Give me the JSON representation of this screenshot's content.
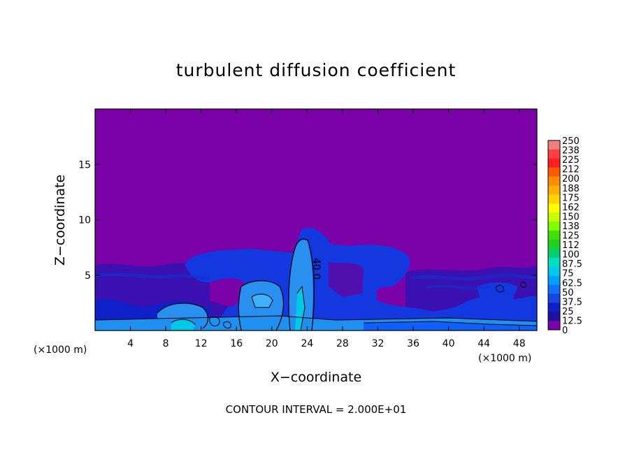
{
  "chart_data": {
    "type": "heatmap",
    "title": "turbulent diffusion coefficient",
    "xlabel": "X−coordinate",
    "ylabel": "Z−coordinate",
    "x_unit_left": "(×1000 m)",
    "x_unit_right": "(×1000 m)",
    "xlim": [
      0,
      50
    ],
    "ylim": [
      0,
      20
    ],
    "x_ticks": [
      4,
      8,
      12,
      16,
      20,
      24,
      28,
      32,
      36,
      40,
      44,
      48
    ],
    "y_ticks": [
      5,
      10,
      15
    ],
    "colorbar": {
      "labels": [
        "250",
        "238",
        "225",
        "212",
        "200",
        "188",
        "175",
        "162",
        "150",
        "138",
        "125",
        "112",
        "100",
        "87.5",
        "75",
        "62.5",
        "50",
        "37.5",
        "25",
        "12.5",
        "0"
      ],
      "colors": [
        "#f08080",
        "#ff4040",
        "#ff2020",
        "#ff5a00",
        "#ff8c00",
        "#ffb000",
        "#ffd400",
        "#ffff00",
        "#c8ff00",
        "#80ff00",
        "#40e000",
        "#20d020",
        "#00d070",
        "#00e0c0",
        "#00c8e8",
        "#00a0ff",
        "#1070ff",
        "#1448e0",
        "#1020c8",
        "#2010a0",
        "#7a00a8"
      ]
    },
    "contour_labels": [
      {
        "text": "40.0",
        "x": 24.3,
        "z": 5.8
      }
    ],
    "footer": "CONTOUR INTERVAL = 2.000E+01"
  }
}
